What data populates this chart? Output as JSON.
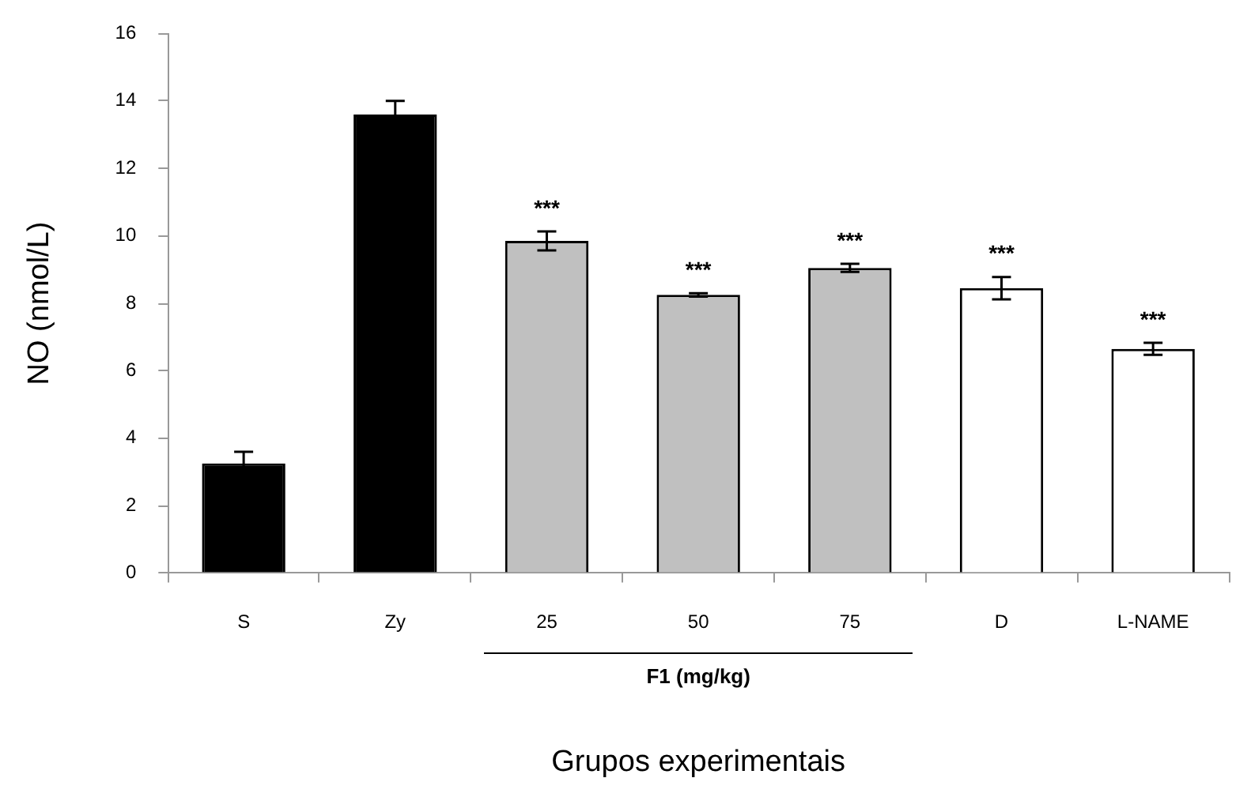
{
  "chart_data": {
    "type": "bar",
    "xlabel": "Grupos experimentais",
    "ylabel": "NO (nmol/L)",
    "categories": [
      "S",
      "Zy",
      "25",
      "50",
      "75",
      "D",
      "L-NAME"
    ],
    "values": [
      3.25,
      13.6,
      9.85,
      8.25,
      9.05,
      8.45,
      6.65
    ],
    "errors": [
      0.35,
      0.4,
      0.28,
      0.05,
      0.12,
      0.33,
      0.18
    ],
    "colors": [
      "#000000",
      "#000000",
      "#c0c0c0",
      "#c0c0c0",
      "#c0c0c0",
      "#ffffff",
      "#ffffff"
    ],
    "ylim": [
      0,
      16
    ],
    "yticks": [
      0,
      2,
      4,
      6,
      8,
      10,
      12,
      14,
      16
    ],
    "annotations": [
      "***",
      "***",
      "***",
      "***",
      "***",
      "F1 (mg/kg)"
    ],
    "legend": false,
    "grid": false
  }
}
